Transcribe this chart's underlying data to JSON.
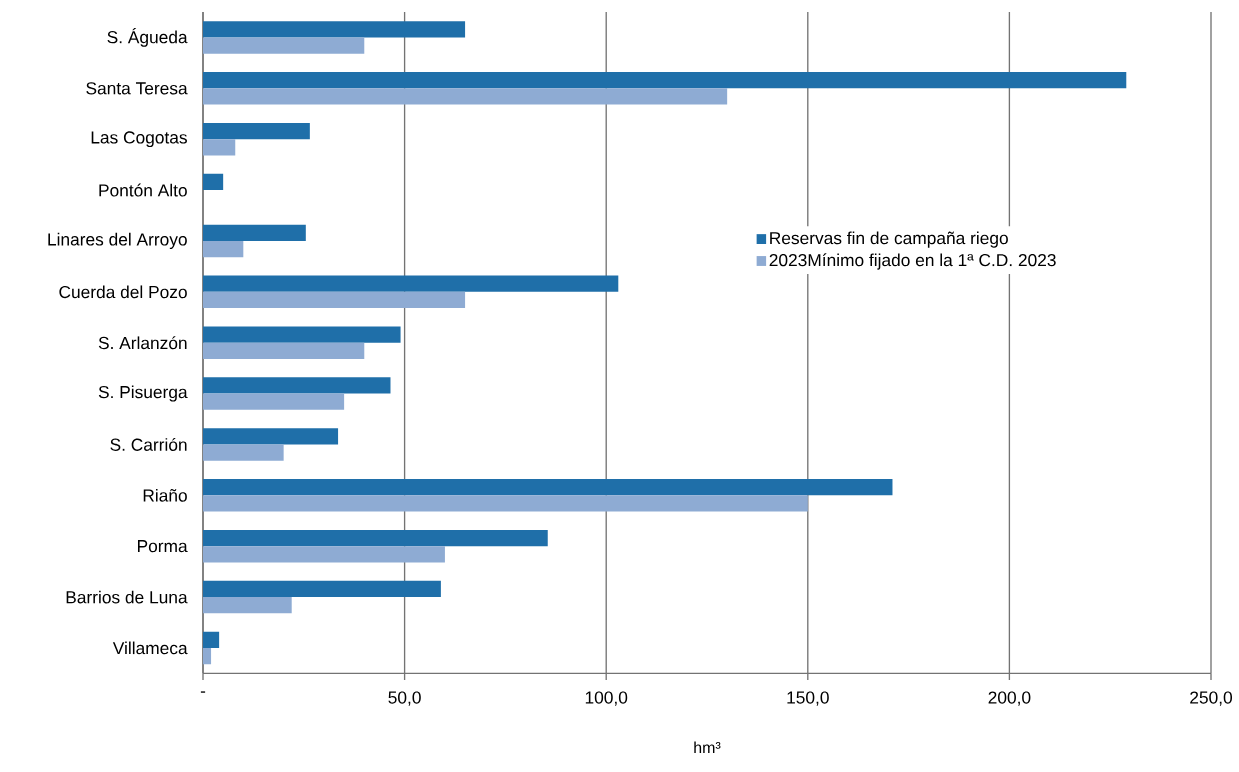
{
  "chart_data": {
    "type": "bar",
    "orientation": "horizontal",
    "xlabel": "hm³",
    "categories": [
      "S. Águeda",
      "Santa Teresa",
      "Las Cogotas",
      "Pontón Alto",
      "Linares del Arroyo",
      "Cuerda del Pozo",
      "S. Arlanzón",
      "S. Pisuerga",
      "S. Carrión",
      "Riaño",
      "Porma",
      "Barrios de Luna",
      "Villameca"
    ],
    "series": [
      {
        "name": "Reservas fin de campaña riego",
        "color": "#1f6fa9",
        "values": [
          65,
          229,
          26.5,
          5,
          25.5,
          103,
          49,
          46.5,
          33.5,
          171,
          85.5,
          59,
          4
        ]
      },
      {
        "name": "2023Mínimo fijado en la 1ª C.D. 2023",
        "color": "#8eabd3",
        "values": [
          40,
          130,
          8,
          null,
          10,
          65,
          40,
          35,
          20,
          150,
          60,
          22,
          2
        ]
      }
    ],
    "xlim": [
      0,
      250
    ],
    "xticks": [
      {
        "value": 0,
        "label": "-"
      },
      {
        "value": 50,
        "label": "50,0"
      },
      {
        "value": 100,
        "label": "100,0"
      },
      {
        "value": 150,
        "label": "150,0"
      },
      {
        "value": 200,
        "label": "200,0"
      },
      {
        "value": 250,
        "label": "250,0"
      }
    ],
    "grid": "x",
    "legend": "right"
  }
}
